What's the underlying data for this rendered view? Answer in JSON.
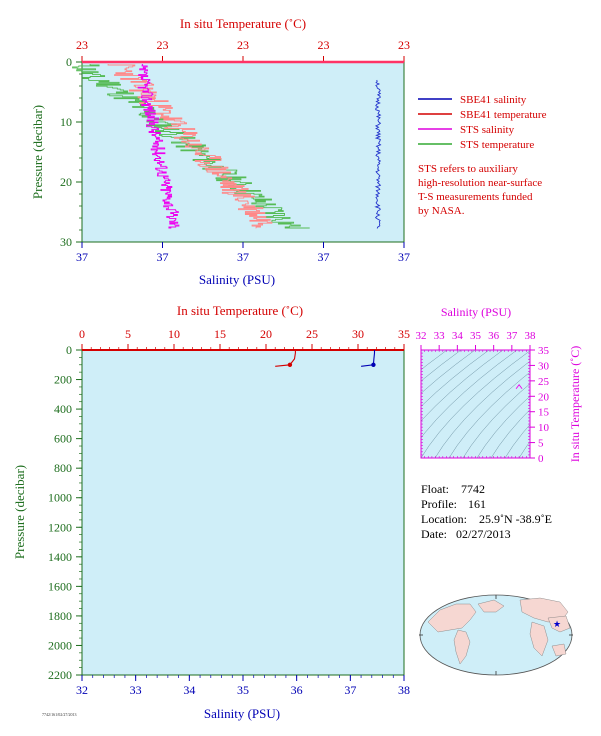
{
  "colors": {
    "red": "#d40000",
    "blue": "#0000b4",
    "green": "#1e6e1e",
    "magenta": "#dd00dd",
    "plot_bg": "#cfeef8",
    "sts_salinity": "#ee00ee",
    "sts_temperature": "#55bb55",
    "sbe_salinity": "#2233cc",
    "sbe_temperature": "#ff8888"
  },
  "top_panel": {
    "top_axis_title": "In situ Temperature (˚C)",
    "top_ticks": [
      "23",
      "23",
      "23",
      "23",
      "23"
    ],
    "left_axis_title": "Pressure (decibar)",
    "left_ticks": [
      "0",
      "10",
      "20",
      "30"
    ],
    "bottom_ticks": [
      "37",
      "37",
      "37",
      "37",
      "37"
    ],
    "bottom_axis_title": "Salinity (PSU)"
  },
  "legend": {
    "items": [
      {
        "label": "SBE41 salinity",
        "color": "#0000b4"
      },
      {
        "label": "SBE41 temperature",
        "color": "#d40000"
      },
      {
        "label": "STS salinity",
        "color": "#dd00dd"
      },
      {
        "label": "STS temperature",
        "color": "#33aa33"
      }
    ],
    "note": [
      "STS refers to auxiliary",
      "high-resolution near-surface",
      "T-S measurements funded",
      "by NASA."
    ]
  },
  "bottom_panel": {
    "top_axis_title": "In situ Temperature (˚C)",
    "top_ticks": [
      "0",
      "5",
      "10",
      "15",
      "20",
      "25",
      "30",
      "35"
    ],
    "left_axis_title": "Pressure (decibar)",
    "left_ticks": [
      "0",
      "200",
      "400",
      "600",
      "800",
      "1000",
      "1200",
      "1400",
      "1600",
      "1800",
      "2000",
      "2200"
    ],
    "bottom_ticks": [
      "32",
      "33",
      "34",
      "35",
      "36",
      "37",
      "38"
    ],
    "bottom_axis_title": "Salinity (PSU)",
    "footer_code": "7742/161/02/27/2013"
  },
  "ts_panel": {
    "top_axis_title": "Salinity (PSU)",
    "top_ticks": [
      "32",
      "33",
      "34",
      "35",
      "36",
      "37",
      "38"
    ],
    "right_axis_title": "In situ Temperature (˚C)",
    "right_ticks": [
      "35",
      "30",
      "25",
      "20",
      "15",
      "10",
      "5",
      "0"
    ]
  },
  "float_info": {
    "float_label": "Float:",
    "float_value": "7742",
    "profile_label": "Profile:",
    "profile_value": "161",
    "location_label": "Location:",
    "location_value": "25.9˚N  -38.9˚E",
    "date_label": "Date:",
    "date_value": "02/27/2013"
  },
  "chart_data": [
    {
      "type": "line",
      "title": "",
      "xlabel_top": "In situ Temperature (˚C)",
      "xlabel_bottom": "Salinity (PSU)",
      "ylabel": "Pressure (decibar)",
      "ylim": [
        30,
        0
      ],
      "series": [
        {
          "name": "SBE41 salinity",
          "pressure": [
            3,
            5,
            8,
            10,
            12,
            14,
            16,
            18,
            20,
            22,
            24,
            26,
            28
          ],
          "salinity": [
            37.0,
            37.0,
            37.0,
            37.0,
            37.0,
            37.0,
            37.0,
            37.0,
            37.0,
            37.0,
            37.0,
            37.0,
            37.0
          ]
        },
        {
          "name": "SBE41 temperature",
          "pressure": [
            0,
            2,
            4,
            6,
            8,
            10,
            12,
            14,
            16,
            18,
            20,
            22,
            24,
            26,
            28
          ],
          "temperature": [
            23,
            23,
            23,
            23,
            23,
            23,
            23,
            23,
            23,
            23,
            23,
            23,
            23,
            23,
            23
          ]
        },
        {
          "name": "STS salinity",
          "pressure": [
            0,
            2,
            4,
            6,
            8,
            10,
            12,
            14,
            16,
            18,
            20,
            22,
            24,
            26,
            28
          ],
          "salinity": [
            37,
            37,
            37,
            37,
            37,
            37,
            37,
            37,
            37,
            37,
            37,
            37,
            37,
            37,
            37
          ]
        },
        {
          "name": "STS temperature",
          "pressure": [
            0,
            2,
            4,
            6,
            8,
            10,
            12,
            14,
            16,
            18,
            20,
            22,
            24,
            26,
            28
          ],
          "temperature": [
            23,
            23,
            23,
            23,
            23,
            23,
            23,
            23,
            23,
            23,
            23,
            23,
            23,
            23,
            23
          ]
        }
      ]
    },
    {
      "type": "line",
      "title": "",
      "xlabel_top": "In situ Temperature (˚C)",
      "xlabel_bottom": "Salinity (PSU)",
      "ylabel": "Pressure (decibar)",
      "xlim_temperature": [
        0,
        35
      ],
      "xlim_salinity": [
        32,
        38
      ],
      "ylim": [
        2200,
        0
      ],
      "series": [
        {
          "name": "temperature",
          "pressure": [
            0,
            20,
            60,
            100,
            110
          ],
          "temperature": [
            23.2,
            23.2,
            23.1,
            22.6,
            21.0
          ]
        },
        {
          "name": "salinity",
          "pressure": [
            0,
            20,
            60,
            100,
            110
          ],
          "salinity": [
            37.45,
            37.45,
            37.44,
            37.43,
            37.2
          ]
        }
      ]
    },
    {
      "type": "scatter",
      "title": "",
      "xlabel": "Salinity (PSU)",
      "ylabel": "In situ Temperature (˚C)",
      "xlim": [
        32,
        38
      ],
      "ylim": [
        0,
        35
      ],
      "points": [
        {
          "salinity": 37.4,
          "temperature": 23.1
        }
      ]
    }
  ]
}
